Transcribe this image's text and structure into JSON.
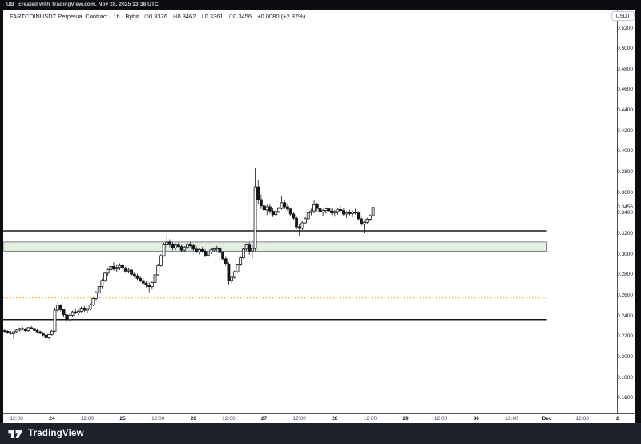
{
  "frame": {
    "top_bar_text": "UB_ created with TradingView.com, Nov 28, 2025 13:38 UTC",
    "footer_brand": "TradingView"
  },
  "header": {
    "title": "FARTCOINUSDT Perpetual Contract · 1h · Bybit",
    "ohlc": {
      "o_label": "O",
      "o": "0.3376",
      "h_label": "H",
      "h": "0.3462",
      "l_label": "L",
      "l": "0.3361",
      "c_label": "C",
      "c": "0.3456"
    },
    "change": "+0.0080 (+2.37%)"
  },
  "price_axis": {
    "currency_label": "USDT",
    "ticks": [
      "0.5200",
      "0.5000",
      "0.4800",
      "0.4600",
      "0.4400",
      "0.4200",
      "0.4000",
      "0.3800",
      "0.3600",
      "0.3400",
      "0.3200",
      "0.3000",
      "0.2800",
      "0.2600",
      "0.2400",
      "0.2200",
      "0.2000",
      "0.1800",
      "0.1600"
    ],
    "last_price": "0.3456"
  },
  "time_axis": {
    "ticks": [
      {
        "label": "12:00",
        "index": 4,
        "major": false
      },
      {
        "label": "24",
        "index": 16,
        "major": true
      },
      {
        "label": "12:00",
        "index": 28,
        "major": false
      },
      {
        "label": "25",
        "index": 40,
        "major": true
      },
      {
        "label": "12:00",
        "index": 52,
        "major": false
      },
      {
        "label": "26",
        "index": 64,
        "major": true
      },
      {
        "label": "12:00",
        "index": 76,
        "major": false
      },
      {
        "label": "27",
        "index": 88,
        "major": true
      },
      {
        "label": "12:00",
        "index": 100,
        "major": false
      },
      {
        "label": "28",
        "index": 112,
        "major": true
      },
      {
        "label": "12:00",
        "index": 124,
        "major": false
      },
      {
        "label": "29",
        "index": 136,
        "major": true
      },
      {
        "label": "12:00",
        "index": 148,
        "major": false
      },
      {
        "label": "30",
        "index": 160,
        "major": true
      },
      {
        "label": "12:00",
        "index": 172,
        "major": false
      },
      {
        "label": "Dec",
        "index": 184,
        "major": true
      },
      {
        "label": "12:00",
        "index": 196,
        "major": false
      },
      {
        "label": "2",
        "index": 208,
        "major": true
      }
    ]
  },
  "chart_data": {
    "type": "candlestick",
    "symbol": "FARTCOINUSDT Perpetual Contract",
    "exchange": "Bybit",
    "interval": "1h",
    "grid": false,
    "price_range_visible": [
      0.16,
      0.52
    ],
    "last_candle": {
      "open": 0.3376,
      "high": 0.3462,
      "low": 0.3361,
      "close": 0.3456,
      "change": "+0.0080 (+2.37%)"
    },
    "up_color": "#ffffff",
    "down_color": "#14161c",
    "outline_color": "#14161c",
    "levels_end_index": 184,
    "levels": [
      {
        "name": "upper-black-line",
        "type": "hline",
        "price": 0.3228,
        "color": "#16181d",
        "width": 1.5,
        "line_style": "solid"
      },
      {
        "name": "green-zone",
        "type": "box",
        "price_top": 0.312,
        "price_bottom": 0.303,
        "fill": "#e3f0df",
        "stroke": "#7c8089",
        "width": 1
      },
      {
        "name": "orange-dotted-line",
        "type": "hline",
        "price": 0.2575,
        "color": "#ff9800",
        "width": 1,
        "line_style": "dotted"
      },
      {
        "name": "lower-black-line",
        "type": "hline",
        "price": 0.2365,
        "color": "#16181d",
        "width": 1.5,
        "line_style": "solid"
      }
    ],
    "candles": [
      [
        0.2258,
        0.2275,
        0.2238,
        0.225
      ],
      [
        0.225,
        0.2262,
        0.2226,
        0.2236
      ],
      [
        0.2236,
        0.2254,
        0.2218,
        0.2228
      ],
      [
        0.2228,
        0.2252,
        0.218,
        0.2246
      ],
      [
        0.2246,
        0.227,
        0.2234,
        0.2262
      ],
      [
        0.2262,
        0.2286,
        0.225,
        0.2278
      ],
      [
        0.2278,
        0.2296,
        0.2262,
        0.227
      ],
      [
        0.227,
        0.2282,
        0.2246,
        0.2256
      ],
      [
        0.2256,
        0.2292,
        0.2248,
        0.2286
      ],
      [
        0.2286,
        0.2302,
        0.2268,
        0.2278
      ],
      [
        0.2278,
        0.2288,
        0.2252,
        0.226
      ],
      [
        0.226,
        0.2272,
        0.2236,
        0.2246
      ],
      [
        0.2246,
        0.2258,
        0.2222,
        0.2232
      ],
      [
        0.2232,
        0.2244,
        0.2202,
        0.2214
      ],
      [
        0.2214,
        0.2228,
        0.2158,
        0.2188
      ],
      [
        0.2188,
        0.2226,
        0.2172,
        0.222
      ],
      [
        0.222,
        0.2262,
        0.2208,
        0.2252
      ],
      [
        0.2252,
        0.2482,
        0.2244,
        0.2456
      ],
      [
        0.2456,
        0.2537,
        0.244,
        0.2506
      ],
      [
        0.2506,
        0.2516,
        0.2444,
        0.2462
      ],
      [
        0.2462,
        0.2472,
        0.2394,
        0.2412
      ],
      [
        0.2412,
        0.2446,
        0.2335,
        0.2366
      ],
      [
        0.2366,
        0.2422,
        0.2354,
        0.2406
      ],
      [
        0.2406,
        0.2452,
        0.239,
        0.244
      ],
      [
        0.244,
        0.2476,
        0.2418,
        0.243
      ],
      [
        0.243,
        0.2462,
        0.2406,
        0.2446
      ],
      [
        0.2446,
        0.2492,
        0.243,
        0.2476
      ],
      [
        0.2476,
        0.2496,
        0.244,
        0.2456
      ],
      [
        0.2456,
        0.2482,
        0.2432,
        0.247
      ],
      [
        0.247,
        0.2522,
        0.2456,
        0.2508
      ],
      [
        0.2508,
        0.2586,
        0.2496,
        0.257
      ],
      [
        0.257,
        0.2642,
        0.2556,
        0.2626
      ],
      [
        0.2626,
        0.2702,
        0.2612,
        0.2686
      ],
      [
        0.2686,
        0.2762,
        0.267,
        0.2746
      ],
      [
        0.2746,
        0.2832,
        0.273,
        0.2816
      ],
      [
        0.2816,
        0.2866,
        0.279,
        0.285
      ],
      [
        0.285,
        0.295,
        0.2828,
        0.2882
      ],
      [
        0.2882,
        0.2922,
        0.284,
        0.2856
      ],
      [
        0.2856,
        0.2896,
        0.2824,
        0.2872
      ],
      [
        0.2872,
        0.2912,
        0.2846,
        0.289
      ],
      [
        0.289,
        0.2906,
        0.2854,
        0.2866
      ],
      [
        0.2866,
        0.2882,
        0.282,
        0.2836
      ],
      [
        0.2836,
        0.2862,
        0.2814,
        0.2846
      ],
      [
        0.2846,
        0.2856,
        0.279,
        0.2806
      ],
      [
        0.2806,
        0.2826,
        0.2774,
        0.279
      ],
      [
        0.279,
        0.2812,
        0.275,
        0.2766
      ],
      [
        0.2766,
        0.2786,
        0.2728,
        0.2744
      ],
      [
        0.2744,
        0.2762,
        0.2704,
        0.272
      ],
      [
        0.272,
        0.2742,
        0.2678,
        0.27
      ],
      [
        0.27,
        0.2726,
        0.263,
        0.2686
      ],
      [
        0.2686,
        0.2736,
        0.2668,
        0.2726
      ],
      [
        0.2726,
        0.2812,
        0.2714,
        0.28
      ],
      [
        0.28,
        0.2902,
        0.279,
        0.289
      ],
      [
        0.289,
        0.3002,
        0.288,
        0.2986
      ],
      [
        0.2986,
        0.3112,
        0.2976,
        0.3092
      ],
      [
        0.3092,
        0.319,
        0.3058,
        0.312
      ],
      [
        0.312,
        0.3146,
        0.3068,
        0.3094
      ],
      [
        0.3094,
        0.312,
        0.3038,
        0.306
      ],
      [
        0.306,
        0.3106,
        0.3044,
        0.309
      ],
      [
        0.309,
        0.3116,
        0.3058,
        0.3076
      ],
      [
        0.3076,
        0.3092,
        0.3018,
        0.304
      ],
      [
        0.304,
        0.3082,
        0.3024,
        0.307
      ],
      [
        0.307,
        0.3112,
        0.305,
        0.3096
      ],
      [
        0.3096,
        0.3122,
        0.3068,
        0.3084
      ],
      [
        0.3084,
        0.31,
        0.3034,
        0.305
      ],
      [
        0.305,
        0.3076,
        0.3008,
        0.3024
      ],
      [
        0.3024,
        0.3062,
        0.3,
        0.3046
      ],
      [
        0.3046,
        0.307,
        0.3014,
        0.303
      ],
      [
        0.303,
        0.305,
        0.2972,
        0.299
      ],
      [
        0.299,
        0.3032,
        0.2968,
        0.3022
      ],
      [
        0.3022,
        0.3056,
        0.3004,
        0.3042
      ],
      [
        0.3042,
        0.3066,
        0.302,
        0.3052
      ],
      [
        0.3052,
        0.3082,
        0.303,
        0.3062
      ],
      [
        0.3062,
        0.3076,
        0.2998,
        0.3016
      ],
      [
        0.3016,
        0.3032,
        0.2938,
        0.2956
      ],
      [
        0.2956,
        0.2976,
        0.2888,
        0.2906
      ],
      [
        0.2906,
        0.2922,
        0.2706,
        0.2746
      ],
      [
        0.2746,
        0.2792,
        0.272,
        0.2776
      ],
      [
        0.2776,
        0.2842,
        0.276,
        0.283
      ],
      [
        0.283,
        0.2906,
        0.282,
        0.2896
      ],
      [
        0.2896,
        0.2976,
        0.2886,
        0.2966
      ],
      [
        0.2966,
        0.3062,
        0.2956,
        0.305
      ],
      [
        0.305,
        0.3106,
        0.3034,
        0.309
      ],
      [
        0.309,
        0.3116,
        0.2996,
        0.3032
      ],
      [
        0.3032,
        0.3092,
        0.2956,
        0.3056
      ],
      [
        0.3056,
        0.384,
        0.303,
        0.3656
      ],
      [
        0.3656,
        0.3722,
        0.349,
        0.3532
      ],
      [
        0.3532,
        0.3582,
        0.344,
        0.3472
      ],
      [
        0.3472,
        0.3526,
        0.3406,
        0.3432
      ],
      [
        0.3432,
        0.3482,
        0.3382,
        0.3462
      ],
      [
        0.3462,
        0.3492,
        0.3396,
        0.3422
      ],
      [
        0.3422,
        0.3452,
        0.3362,
        0.3386
      ],
      [
        0.3386,
        0.3432,
        0.337,
        0.3416
      ],
      [
        0.3416,
        0.3462,
        0.34,
        0.3446
      ],
      [
        0.3446,
        0.3572,
        0.3432,
        0.3502
      ],
      [
        0.3502,
        0.3522,
        0.344,
        0.3462
      ],
      [
        0.3462,
        0.3486,
        0.342,
        0.344
      ],
      [
        0.344,
        0.3456,
        0.3372,
        0.3392
      ],
      [
        0.3392,
        0.3412,
        0.333,
        0.3352
      ],
      [
        0.3352,
        0.3366,
        0.3242,
        0.3266
      ],
      [
        0.3266,
        0.3292,
        0.318,
        0.3252
      ],
      [
        0.3252,
        0.3322,
        0.3236,
        0.3306
      ],
      [
        0.3306,
        0.3362,
        0.329,
        0.3346
      ],
      [
        0.3346,
        0.3422,
        0.3336,
        0.3406
      ],
      [
        0.3406,
        0.3442,
        0.338,
        0.3422
      ],
      [
        0.3422,
        0.3526,
        0.34,
        0.3482
      ],
      [
        0.3482,
        0.3502,
        0.342,
        0.3446
      ],
      [
        0.3446,
        0.3472,
        0.3392,
        0.3412
      ],
      [
        0.3412,
        0.3442,
        0.3372,
        0.3426
      ],
      [
        0.3426,
        0.3456,
        0.3396,
        0.3442
      ],
      [
        0.3442,
        0.3466,
        0.3406,
        0.3422
      ],
      [
        0.3422,
        0.3446,
        0.3382,
        0.3402
      ],
      [
        0.3402,
        0.3432,
        0.3366,
        0.3416
      ],
      [
        0.3416,
        0.3452,
        0.3386,
        0.3436
      ],
      [
        0.3436,
        0.3472,
        0.3412,
        0.3426
      ],
      [
        0.3426,
        0.3446,
        0.3372,
        0.3392
      ],
      [
        0.3392,
        0.3422,
        0.3356,
        0.3406
      ],
      [
        0.3406,
        0.3436,
        0.3376,
        0.3396
      ],
      [
        0.3396,
        0.3426,
        0.3362,
        0.3412
      ],
      [
        0.3412,
        0.3442,
        0.3386,
        0.3402
      ],
      [
        0.3402,
        0.3416,
        0.3326,
        0.3346
      ],
      [
        0.3346,
        0.3366,
        0.3272,
        0.3292
      ],
      [
        0.3292,
        0.3322,
        0.3205,
        0.3312
      ],
      [
        0.3312,
        0.3356,
        0.3296,
        0.3342
      ],
      [
        0.3342,
        0.3386,
        0.3322,
        0.3376
      ],
      [
        0.3376,
        0.3462,
        0.3361,
        0.3456
      ]
    ]
  }
}
